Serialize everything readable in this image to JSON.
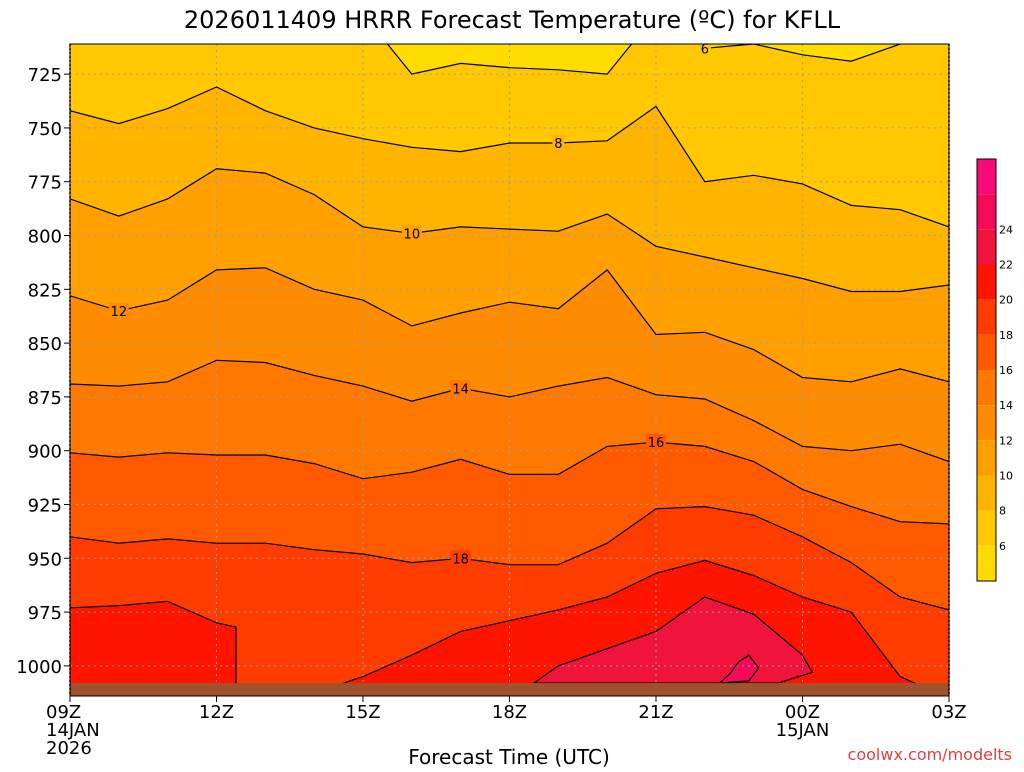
{
  "chart_data": {
    "type": "heatmap",
    "title": "2026011409 HRRR Forecast Temperature (ºC) for KFLL",
    "xlabel": "Forecast Time (UTC)",
    "ylabel": "",
    "watermark": "coolwx.com/modelts",
    "x_range": [
      9,
      27
    ],
    "y_range": [
      711,
      1014
    ],
    "x_ticks": [
      {
        "value": 9,
        "lines": [
          "09Z",
          "14JAN",
          "2026"
        ]
      },
      {
        "value": 12,
        "lines": [
          "12Z"
        ]
      },
      {
        "value": 15,
        "lines": [
          "15Z"
        ]
      },
      {
        "value": 18,
        "lines": [
          "18Z"
        ]
      },
      {
        "value": 21,
        "lines": [
          "21Z"
        ]
      },
      {
        "value": 24,
        "lines": [
          "00Z",
          "15JAN"
        ]
      },
      {
        "value": 27,
        "lines": [
          "03Z"
        ]
      }
    ],
    "y_ticks": [
      725,
      750,
      775,
      800,
      825,
      850,
      875,
      900,
      925,
      950,
      975,
      1000
    ],
    "grid": true,
    "ground_level_hpa": 1008,
    "colorbar": {
      "levels": [
        4,
        6,
        8,
        10,
        12,
        14,
        16,
        18,
        20,
        22,
        24,
        26
      ],
      "labels": [
        6,
        8,
        10,
        12,
        14,
        16,
        18,
        20,
        22,
        24
      ],
      "colors": [
        "#ffdc00",
        "#ffc800",
        "#ffb400",
        "#ffa000",
        "#ff8c00",
        "#ff7800",
        "#ff5a00",
        "#ff3c00",
        "#ff1400",
        "#f0143c",
        "#f50a5a",
        "#fa0a78"
      ]
    },
    "contours": [
      {
        "level": 6,
        "label": "",
        "points": [
          [
            15.5,
            711
          ],
          [
            16,
            725
          ],
          [
            17,
            720
          ],
          [
            18,
            722
          ],
          [
            19,
            723
          ],
          [
            20,
            725
          ],
          [
            20.5,
            711
          ]
        ]
      },
      {
        "level": 6,
        "label": "6",
        "label_at": [
          22,
          713
        ],
        "points": [
          [
            22,
            713
          ],
          [
            23,
            711
          ],
          [
            24,
            716
          ],
          [
            25,
            719
          ],
          [
            26,
            711
          ]
        ]
      },
      {
        "level": 8,
        "label": "8",
        "label_at": [
          19,
          757
        ],
        "points": [
          [
            9,
            742
          ],
          [
            10,
            748
          ],
          [
            11,
            741
          ],
          [
            12,
            731
          ],
          [
            13,
            742
          ],
          [
            14,
            750
          ],
          [
            15,
            755
          ],
          [
            16,
            759
          ],
          [
            17,
            761
          ],
          [
            18,
            757
          ],
          [
            19,
            757
          ],
          [
            20,
            756
          ],
          [
            21,
            740
          ],
          [
            22,
            775
          ],
          [
            23,
            772
          ],
          [
            24,
            776
          ],
          [
            25,
            786
          ],
          [
            26,
            788
          ],
          [
            27,
            796
          ]
        ]
      },
      {
        "level": 10,
        "label": "10",
        "label_at": [
          16,
          799
        ],
        "points": [
          [
            9,
            783
          ],
          [
            10,
            791
          ],
          [
            11,
            783
          ],
          [
            12,
            769
          ],
          [
            13,
            771
          ],
          [
            14,
            781
          ],
          [
            15,
            796
          ],
          [
            16,
            799
          ],
          [
            17,
            796
          ],
          [
            18,
            797
          ],
          [
            19,
            798
          ],
          [
            20,
            790
          ],
          [
            21,
            805
          ],
          [
            22,
            810
          ],
          [
            23,
            815
          ],
          [
            24,
            820
          ],
          [
            25,
            826
          ],
          [
            26,
            826
          ],
          [
            27,
            823
          ]
        ]
      },
      {
        "level": 12,
        "label": "12",
        "label_at": [
          10,
          835
        ],
        "points": [
          [
            9,
            828
          ],
          [
            10,
            835
          ],
          [
            11,
            830
          ],
          [
            12,
            816
          ],
          [
            13,
            815
          ],
          [
            14,
            825
          ],
          [
            15,
            830
          ],
          [
            16,
            842
          ],
          [
            17,
            836
          ],
          [
            18,
            831
          ],
          [
            19,
            834
          ],
          [
            20,
            816
          ],
          [
            21,
            846
          ],
          [
            22,
            845
          ],
          [
            23,
            853
          ],
          [
            24,
            866
          ],
          [
            25,
            868
          ],
          [
            26,
            862
          ],
          [
            27,
            868
          ]
        ]
      },
      {
        "level": 14,
        "label": "14",
        "label_at": [
          17,
          871
        ],
        "points": [
          [
            9,
            869
          ],
          [
            10,
            870
          ],
          [
            11,
            868
          ],
          [
            12,
            858
          ],
          [
            13,
            859
          ],
          [
            14,
            865
          ],
          [
            15,
            870
          ],
          [
            16,
            877
          ],
          [
            17,
            871
          ],
          [
            18,
            875
          ],
          [
            19,
            870
          ],
          [
            20,
            866
          ],
          [
            21,
            874
          ],
          [
            22,
            876
          ],
          [
            23,
            886
          ],
          [
            24,
            898
          ],
          [
            25,
            900
          ],
          [
            26,
            897
          ],
          [
            27,
            905
          ]
        ]
      },
      {
        "level": 16,
        "label": "16",
        "label_at": [
          21,
          896
        ],
        "points": [
          [
            9,
            901
          ],
          [
            10,
            903
          ],
          [
            11,
            901
          ],
          [
            12,
            902
          ],
          [
            13,
            902
          ],
          [
            14,
            906
          ],
          [
            15,
            913
          ],
          [
            16,
            910
          ],
          [
            17,
            904
          ],
          [
            18,
            911
          ],
          [
            19,
            911
          ],
          [
            20,
            898
          ],
          [
            21,
            896
          ],
          [
            22,
            898
          ],
          [
            23,
            905
          ],
          [
            24,
            918
          ],
          [
            25,
            926
          ],
          [
            26,
            933
          ],
          [
            27,
            934
          ]
        ]
      },
      {
        "level": 18,
        "label": "18",
        "label_at": [
          17,
          950
        ],
        "points": [
          [
            9,
            940
          ],
          [
            10,
            943
          ],
          [
            11,
            941
          ],
          [
            12,
            943
          ],
          [
            13,
            943
          ],
          [
            14,
            946
          ],
          [
            15,
            948
          ],
          [
            16,
            952
          ],
          [
            17,
            950
          ],
          [
            18,
            953
          ],
          [
            19,
            953
          ],
          [
            20,
            943
          ],
          [
            21,
            927
          ],
          [
            22,
            926
          ],
          [
            23,
            930
          ],
          [
            24,
            940
          ],
          [
            25,
            952
          ],
          [
            26,
            968
          ],
          [
            27,
            974
          ]
        ]
      },
      {
        "level": 20,
        "label": "",
        "points": [
          [
            9,
            973
          ],
          [
            10,
            972
          ],
          [
            11,
            970
          ],
          [
            12,
            980
          ],
          [
            12.4,
            982
          ],
          [
            12.4,
            1008
          ]
        ]
      },
      {
        "level": 20,
        "label": "",
        "points": [
          [
            14.6,
            1008
          ],
          [
            15,
            1005
          ],
          [
            16,
            995
          ],
          [
            17,
            984
          ],
          [
            18,
            979
          ],
          [
            19,
            974
          ],
          [
            20,
            968
          ],
          [
            21,
            957
          ],
          [
            22,
            951
          ],
          [
            23,
            958
          ],
          [
            24,
            968
          ],
          [
            25,
            975
          ],
          [
            26,
            1005
          ],
          [
            26.3,
            1008
          ]
        ]
      },
      {
        "level": 22,
        "label": "",
        "points": [
          [
            18.5,
            1008
          ],
          [
            19,
            1000
          ],
          [
            20,
            992
          ],
          [
            21,
            984
          ],
          [
            22,
            968
          ],
          [
            23,
            976
          ],
          [
            24,
            995
          ],
          [
            24.2,
            1003
          ],
          [
            23.5,
            1008
          ]
        ]
      },
      {
        "level": 24,
        "label": "",
        "points": [
          [
            22.3,
            1008
          ],
          [
            22.9,
            1007
          ],
          [
            23.1,
            1001
          ],
          [
            22.9,
            995
          ],
          [
            22.7,
            998
          ],
          [
            22.5,
            1004
          ],
          [
            22.3,
            1008
          ]
        ]
      }
    ]
  }
}
